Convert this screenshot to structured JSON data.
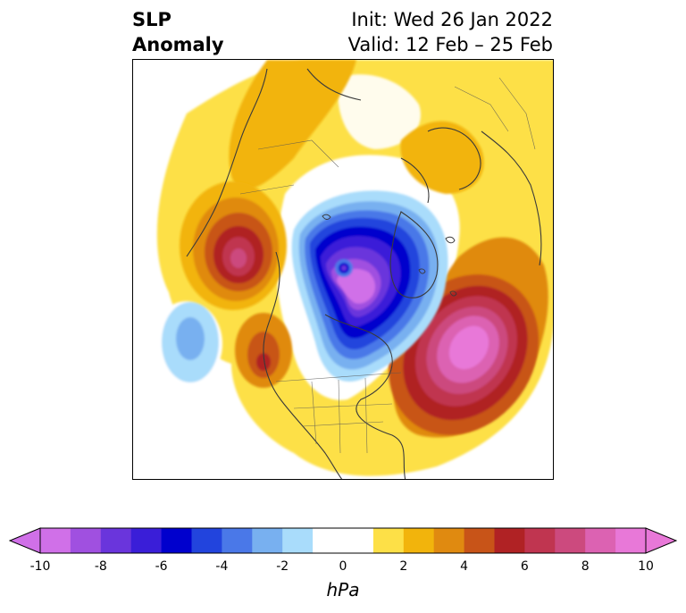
{
  "title": {
    "left_line1": "SLP",
    "left_line2": "Anomaly",
    "right_line1": "Init: Wed 26 Jan 2022",
    "right_line2": "Valid: 12 Feb – 25 Feb"
  },
  "colorbar": {
    "unit_label": "hPa",
    "tick_labels": [
      "-10",
      "-8",
      "-6",
      "-4",
      "-2",
      "0",
      "2",
      "4",
      "6",
      "8",
      "10"
    ],
    "range": [
      -10,
      10
    ],
    "colors": [
      "#d070e8",
      "#a050e0",
      "#6a35dc",
      "#3a1ed8",
      "#0000cd",
      "#2244dd",
      "#4a78e8",
      "#78b0f0",
      "#a9dcfb",
      "#ffffff",
      "#ffffff",
      "#fde047",
      "#f2b40c",
      "#e08a10",
      "#c85418",
      "#b02224",
      "#c03550",
      "#cc4a7e",
      "#dc62b2",
      "#e878d8"
    ]
  },
  "map": {
    "field": "sea level pressure anomaly",
    "features": [
      {
        "name": "negative-anomaly-arctic",
        "sign": "negative",
        "peak_value": -10
      },
      {
        "name": "positive-anomaly-north-atlantic",
        "sign": "positive",
        "peak_value": 10
      },
      {
        "name": "positive-anomaly-siberia-north-pacific",
        "sign": "positive",
        "peak_value": 8
      },
      {
        "name": "negative-anomaly-north-pacific",
        "sign": "negative",
        "peak_value": -4
      }
    ]
  }
}
